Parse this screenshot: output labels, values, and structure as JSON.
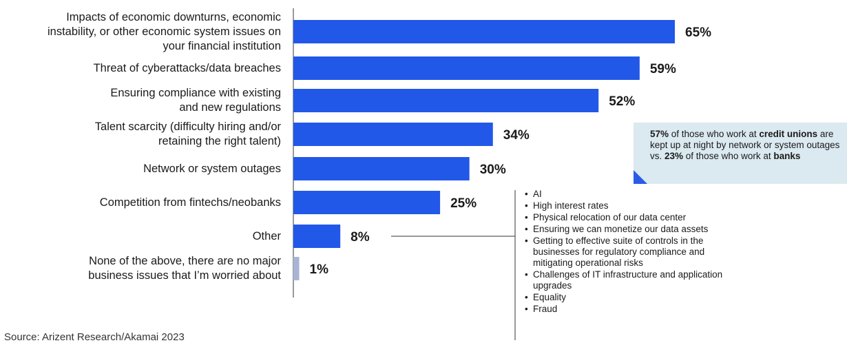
{
  "chart_data": {
    "type": "bar",
    "orientation": "horizontal",
    "categories": [
      "Impacts of economic downturns, economic instability, or other economic system issues on your financial institution",
      "Threat of cyberattacks/data breaches",
      "Ensuring compliance with existing and new regulations",
      "Talent scarcity (difficulty hiring and/or retaining the right talent)",
      "Network or system outages",
      "Competition from fintechs/neobanks",
      "Other",
      "None of the above, there are no major business issues that I’m worried about"
    ],
    "category_lines": [
      [
        "Impacts of economic downturns, economic",
        "instability, or other economic system issues on",
        "your financial institution"
      ],
      [
        "Threat of cyberattacks/data breaches"
      ],
      [
        "Ensuring compliance with existing",
        "and new regulations"
      ],
      [
        "Talent scarcity (difficulty hiring and/or",
        "retaining the right talent)"
      ],
      [
        "Network or system outages"
      ],
      [
        "Competition from fintechs/neobanks"
      ],
      [
        "Other"
      ],
      [
        "None of the above, there are no major",
        "business issues that I’m worried about"
      ]
    ],
    "values": [
      65,
      59,
      52,
      34,
      30,
      25,
      8,
      1
    ],
    "value_labels": [
      "65%",
      "59%",
      "52%",
      "34%",
      "30%",
      "25%",
      "8%",
      "1%"
    ],
    "bar_colors": [
      "#2158e8",
      "#2158e8",
      "#2158e8",
      "#2158e8",
      "#2158e8",
      "#2158e8",
      "#2158e8",
      "#a9b4d4"
    ],
    "xlim": [
      0,
      65
    ],
    "grid": false,
    "title": "",
    "xlabel": "",
    "ylabel": ""
  },
  "callout": {
    "stat1": "57%",
    "text1": " of those who work at ",
    "group1": "credit unions",
    "text2": " are kept up at night by network or system outages vs. ",
    "stat2": "23%",
    "text3": " of those who work at ",
    "group2": "banks"
  },
  "other_responses": [
    "AI",
    "High interest rates",
    "Physical relocation of our data center",
    "Ensuring we can monetize our data assets",
    "Getting to effective suite of controls in the businesses for regulatory compliance and mitigating operational risks",
    "Challenges of IT infrastructure and application upgrades",
    "Equality",
    "Fraud"
  ],
  "source": "Source: Arizent Research/Akamai 2023",
  "colors": {
    "bar": "#2158e8",
    "bar_none": "#a9b4d4",
    "callout_bg": "#dbe9f0",
    "accent": "#2a5ce8"
  }
}
